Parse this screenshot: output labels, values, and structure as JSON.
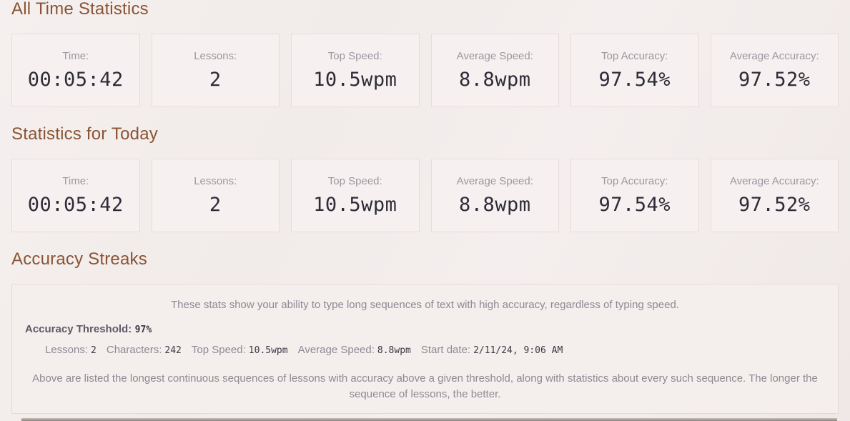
{
  "sections": {
    "all_time": {
      "title": "All Time Statistics",
      "stats": [
        {
          "label": "Time:",
          "value": "00:05:42"
        },
        {
          "label": "Lessons:",
          "value": "2"
        },
        {
          "label": "Top Speed:",
          "value": "10.5wpm"
        },
        {
          "label": "Average Speed:",
          "value": "8.8wpm"
        },
        {
          "label": "Top Accuracy:",
          "value": "97.54%"
        },
        {
          "label": "Average Accuracy:",
          "value": "97.52%"
        }
      ]
    },
    "today": {
      "title": "Statistics for Today",
      "stats": [
        {
          "label": "Time:",
          "value": "00:05:42"
        },
        {
          "label": "Lessons:",
          "value": "2"
        },
        {
          "label": "Top Speed:",
          "value": "10.5wpm"
        },
        {
          "label": "Average Speed:",
          "value": "8.8wpm"
        },
        {
          "label": "Top Accuracy:",
          "value": "97.54%"
        },
        {
          "label": "Average Accuracy:",
          "value": "97.52%"
        }
      ]
    },
    "accuracy_streaks": {
      "title": "Accuracy Streaks",
      "description": "These stats show your ability to type long sequences of text with high accuracy, regardless of typing speed.",
      "threshold_label": "Accuracy Threshold:",
      "threshold_value": "97%",
      "streak_stats": [
        {
          "label": "Lessons:",
          "value": "2"
        },
        {
          "label": "Characters:",
          "value": "242"
        },
        {
          "label": "Top Speed:",
          "value": "10.5wpm"
        },
        {
          "label": "Average Speed:",
          "value": "8.8wpm"
        },
        {
          "label": "Start date:",
          "value": "2/11/24, 9:06 AM"
        }
      ],
      "footnote": "Above are listed the longest continuous sequences of lessons with accuracy above a given threshold, along with statistics about every such sequence. The longer the sequence of lessons, the better."
    }
  },
  "colors": {
    "heading": "#8a5434",
    "stat_value_text": "#2e2b38",
    "muted_text": "#8d8a94",
    "threshold_label_text": "#5d5a66",
    "page_background": "#f1ebe9",
    "card_background": "#f6f1f0",
    "card_border": "#e6dddb",
    "bottom_bar": "#8d8680"
  }
}
